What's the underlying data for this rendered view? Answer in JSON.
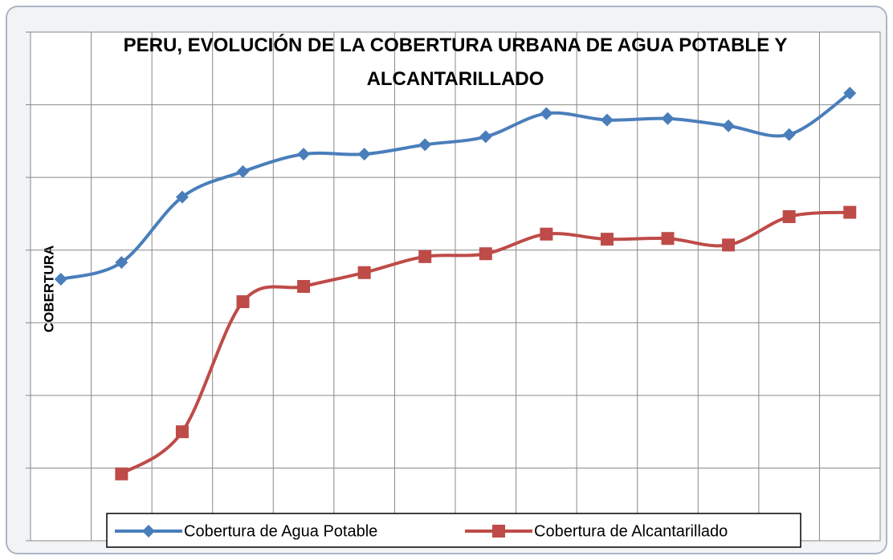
{
  "chart_data": {
    "type": "line",
    "title": "PERU, EVOLUCIÓN DE LA COBERTURA URBANA DE AGUA POTABLE Y ALCANTARILLADO",
    "ylabel": "COBERTURA",
    "categories": [
      null,
      null,
      null,
      null,
      null,
      null,
      null,
      null,
      null,
      null,
      null,
      null,
      null,
      null
    ],
    "series": [
      {
        "name": "Cobertura de Agua Potable",
        "color": "#4a7ebb",
        "marker": "diamond",
        "values": [
          3.6,
          3.83,
          4.73,
          5.08,
          5.32,
          5.32,
          5.45,
          5.56,
          5.88,
          5.79,
          5.81,
          5.71,
          5.59,
          6.16
        ]
      },
      {
        "name": "Cobertura de Alcantarillado",
        "color": "#be4b48",
        "marker": "square",
        "values": [
          null,
          0.92,
          1.5,
          3.29,
          3.5,
          3.69,
          3.91,
          3.95,
          4.22,
          4.15,
          4.16,
          4.07,
          4.46,
          4.52
        ]
      }
    ],
    "ylim": [
      0,
      7
    ],
    "yticks": [
      0,
      1,
      2,
      3,
      4,
      5,
      6,
      7
    ],
    "grid": true,
    "smooth": true,
    "legend": "bottom"
  }
}
